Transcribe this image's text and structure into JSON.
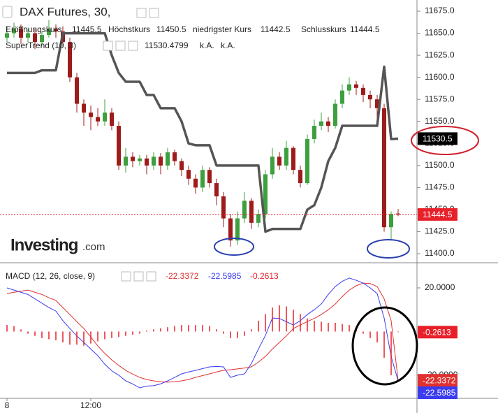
{
  "chart_data": [
    {
      "type": "candlestick",
      "title": "DAX Futures, 30,",
      "categories": [
        "8",
        null,
        null,
        null,
        null,
        null,
        null,
        null,
        null,
        null,
        null,
        null,
        "12:00",
        null,
        null,
        null,
        null,
        null,
        null,
        null,
        null,
        null,
        null,
        null,
        null,
        null,
        null,
        null,
        null,
        null,
        null,
        null,
        null,
        null,
        null,
        null,
        null,
        null,
        null,
        null,
        null,
        null,
        null,
        null,
        null,
        null,
        null,
        null,
        null,
        null,
        null,
        null,
        null,
        null,
        null,
        null,
        null
      ],
      "ohlc_labels": [
        "Eröffnungskurs",
        "Höchstkurs",
        "niedrigster Kurs",
        "Schlusskurs"
      ],
      "open": [
        11645,
        11650,
        11655,
        11645,
        11650,
        11640,
        11648,
        11655,
        11652,
        11640,
        11600,
        11570,
        11560,
        11555,
        11550,
        11560,
        11545,
        11500,
        11510,
        11505,
        11508,
        11500,
        11510,
        11500,
        11515,
        11505,
        11495,
        11485,
        11475,
        11495,
        11480,
        11465,
        11440,
        11415,
        11440,
        11460,
        11435,
        11445,
        11490,
        11510,
        11500,
        11520,
        11495,
        11480,
        11530,
        11545,
        11550,
        11545,
        11570,
        11585,
        11592,
        11588,
        11580,
        11575,
        11565,
        11430,
        11445.5
      ],
      "high": [
        11658,
        11662,
        11660,
        11655,
        11655,
        11652,
        11665,
        11660,
        11658,
        11645,
        11605,
        11575,
        11568,
        11565,
        11575,
        11565,
        11550,
        11520,
        11515,
        11512,
        11512,
        11515,
        11514,
        11520,
        11518,
        11508,
        11500,
        11490,
        11500,
        11498,
        11485,
        11470,
        11445,
        11448,
        11470,
        11463,
        11450,
        11495,
        11520,
        11515,
        11528,
        11522,
        11500,
        11535,
        11552,
        11560,
        11555,
        11575,
        11592,
        11600,
        11596,
        11592,
        11585,
        11580,
        11570,
        11448,
        11450.5
      ],
      "low": [
        11640,
        11645,
        11638,
        11640,
        11632,
        11635,
        11645,
        11645,
        11635,
        11595,
        11560,
        11545,
        11540,
        11545,
        11545,
        11540,
        11495,
        11492,
        11498,
        11500,
        11490,
        11495,
        11490,
        11495,
        11500,
        11488,
        11478,
        11468,
        11470,
        11475,
        11455,
        11430,
        11408,
        11410,
        11435,
        11428,
        11430,
        11440,
        11485,
        11495,
        11495,
        11490,
        11475,
        11478,
        11525,
        11540,
        11538,
        11542,
        11565,
        11580,
        11580,
        11572,
        11565,
        11545,
        11425,
        11415,
        11442.5
      ],
      "close": [
        11650,
        11655,
        11645,
        11650,
        11640,
        11648,
        11655,
        11652,
        11640,
        11600,
        11570,
        11560,
        11555,
        11550,
        11560,
        11545,
        11500,
        11510,
        11505,
        11508,
        11500,
        11510,
        11500,
        11515,
        11505,
        11495,
        11485,
        11475,
        11495,
        11480,
        11465,
        11440,
        11415,
        11440,
        11460,
        11435,
        11445,
        11490,
        11510,
        11500,
        11520,
        11495,
        11480,
        11530,
        11545,
        11550,
        11545,
        11570,
        11585,
        11592,
        11588,
        11580,
        11575,
        11565,
        11430,
        11445,
        11444.5
      ],
      "up_color": "#3d9f3d",
      "down_color": "#9e1b1b",
      "last_price_color": "#e8202a",
      "series": [
        {
          "name": "SuperTrend (10, 3)",
          "color": "#555555",
          "values": [
            11605,
            11605,
            11605,
            11605,
            11605,
            11608,
            11608,
            11608,
            11650,
            11650,
            11650,
            11650,
            11650,
            11650,
            11650,
            11625,
            11605,
            11595,
            11595,
            11595,
            11580,
            11580,
            11565,
            11565,
            11565,
            11550,
            11525,
            11523,
            11523,
            11523,
            11500,
            11500,
            11500,
            11500,
            11500,
            11500,
            11500,
            11425,
            11428,
            11428,
            11428,
            11428,
            11428,
            11450,
            11455,
            11475,
            11505,
            11520,
            11545,
            11545,
            11545,
            11545,
            11545,
            11545,
            11612,
            11530,
            11530.4799
          ],
          "value_labels": [
            null,
            null,
            null,
            null,
            null,
            null,
            null,
            null,
            null,
            null,
            null,
            null,
            null,
            null,
            null,
            null,
            null,
            null,
            null,
            null,
            null,
            null,
            null,
            null,
            null,
            null,
            null,
            null,
            null,
            null,
            null,
            null,
            null,
            null,
            null,
            null,
            null,
            null,
            null,
            null,
            null,
            null,
            null,
            null,
            null,
            null,
            null,
            null,
            null,
            null,
            null,
            null,
            null,
            null,
            null,
            null,
            "11530.5"
          ]
        }
      ],
      "series_extra": [
        "k.A.",
        "k.A."
      ],
      "watermark": "Investing",
      "watermark_suffix": ".com",
      "ylim": [
        11390.5,
        11687.7
      ],
      "yticks": [
        {
          "value": 11675,
          "label": "11675.0"
        },
        {
          "value": 11650,
          "label": "11650.0"
        },
        {
          "value": 11625,
          "label": "11625.0"
        },
        {
          "value": 11600,
          "label": "11600.0"
        },
        {
          "value": 11575,
          "label": "11575.0"
        },
        {
          "value": 11550,
          "label": "11550.0"
        },
        {
          "value": 11525,
          "label": "11525.0"
        },
        {
          "value": 11500,
          "label": "11500.0"
        },
        {
          "value": 11475,
          "label": "11475.0"
        },
        {
          "value": 11450,
          "label": "11450.0"
        },
        {
          "value": 11425,
          "label": "11425.0"
        },
        {
          "value": 11400,
          "label": "11400.0"
        }
      ]
    },
    {
      "type": "macd",
      "title": "MACD (12, 26, close, 9)",
      "series": [
        {
          "kind": "signal",
          "color": "#e03030",
          "values": [
            17.4,
            18,
            18.5,
            19,
            18,
            17,
            15.5,
            14.2,
            11,
            7.8,
            4.5,
            1.4,
            -2.5,
            -6.6,
            -10,
            -13,
            -15.5,
            -17.8,
            -19.5,
            -21,
            -22,
            -22.6,
            -23,
            -23.2,
            -23,
            -22.6,
            -22,
            -21,
            -20.2,
            -19.4,
            -18.5,
            -17.8,
            -17.5,
            -17.1,
            -16.7,
            -16.2,
            -14,
            -11.4,
            -8,
            -5,
            -2,
            1.4,
            3,
            4.6,
            6,
            7.8,
            10,
            12.6,
            16,
            19,
            21,
            22.2,
            22,
            20.6,
            15,
            5,
            -22.3372
          ]
        },
        {
          "kind": "macd",
          "color": "#3b3bf0",
          "values": [
            20,
            19,
            18,
            17,
            15,
            13,
            11,
            9.4,
            5,
            1.4,
            -2,
            -5,
            -8,
            -11,
            -15,
            -18,
            -20,
            -22.6,
            -24,
            -25.8,
            -25,
            -24.8,
            -24,
            -22.6,
            -21,
            -19.4,
            -18.5,
            -17.8,
            -17,
            -16.2,
            -16,
            -16.2,
            -21,
            -20,
            -19.4,
            -14.6,
            -8,
            -1.8,
            6.2,
            6,
            4.5,
            3,
            5,
            7.8,
            10,
            12.6,
            17,
            20.6,
            23,
            24.5,
            23.5,
            22.2,
            20,
            17.4,
            6.2,
            -11.4,
            -22.5985
          ]
        },
        {
          "kind": "histogram",
          "color": "#e8202a",
          "values": [
            3,
            2.5,
            1,
            -1,
            -2,
            -3,
            -3.5,
            -4,
            -5,
            -6,
            -6,
            -6.5,
            -5.5,
            -4.5,
            -3.5,
            -3,
            -2.5,
            -2,
            -1.5,
            -1,
            0.5,
            1,
            1.5,
            2,
            2.5,
            3,
            3,
            3,
            3,
            2.5,
            1,
            -1,
            -3,
            -3,
            -2,
            1,
            5,
            8,
            11,
            12,
            11.5,
            10,
            8,
            6,
            5,
            4.5,
            4,
            4,
            3.5,
            3,
            1.5,
            -1,
            -3,
            -5,
            -12,
            -20,
            -0.2613
          ]
        }
      ],
      "ylim": [
        -30.6,
        31.2
      ],
      "yticks": [
        {
          "value": 20,
          "label": "20.0000"
        },
        {
          "value": -20,
          "label": "-20.0000"
        }
      ]
    }
  ]
}
